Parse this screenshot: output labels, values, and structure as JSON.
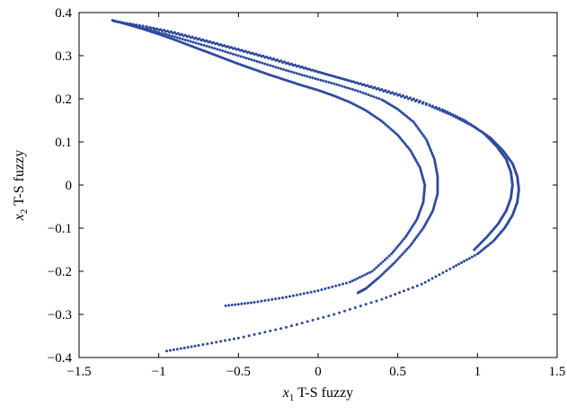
{
  "chart_data": {
    "type": "scatter",
    "title": "",
    "xlabel": {
      "var": "x",
      "sub": "1",
      "text": " T-S fuzzy"
    },
    "ylabel": {
      "var": "x",
      "sub": "2",
      "text": " T-S fuzzy"
    },
    "xlim": [
      -1.5,
      1.5
    ],
    "ylim": [
      -0.4,
      0.4
    ],
    "xticks": [
      -1.5,
      -1,
      -0.5,
      0,
      0.5,
      1,
      1.5
    ],
    "yticks": [
      -0.4,
      -0.3,
      -0.2,
      -0.1,
      0,
      0.1,
      0.2,
      0.3,
      0.4
    ],
    "xtick_labels": [
      "−1.5",
      "−1",
      "−0.5",
      "0",
      "0.5",
      "1",
      "1.5"
    ],
    "ytick_labels": [
      "−0.4",
      "−0.3",
      "−0.2",
      "−0.1",
      "0",
      "0.1",
      "0.2",
      "0.3",
      "0.4"
    ],
    "grid": false,
    "marker_color": "#2e4a9e",
    "series": [
      {
        "values": [
          [
            -1.29,
            0.382
          ],
          [
            -1.2,
            0.373
          ],
          [
            -1.1,
            0.362
          ],
          [
            -1.0,
            0.35
          ],
          [
            -0.9,
            0.337
          ],
          [
            -0.8,
            0.323
          ],
          [
            -0.7,
            0.309
          ],
          [
            -0.6,
            0.295
          ],
          [
            -0.5,
            0.281
          ],
          [
            -0.4,
            0.268
          ],
          [
            -0.3,
            0.255
          ],
          [
            -0.2,
            0.243
          ],
          [
            -0.1,
            0.231
          ],
          [
            0.0,
            0.22
          ],
          [
            0.1,
            0.207
          ],
          [
            0.2,
            0.192
          ],
          [
            0.3,
            0.173
          ],
          [
            0.4,
            0.148
          ],
          [
            0.5,
            0.116
          ],
          [
            0.58,
            0.08
          ],
          [
            0.64,
            0.04
          ],
          [
            0.67,
            0.0
          ],
          [
            0.66,
            -0.04
          ],
          [
            0.62,
            -0.08
          ],
          [
            0.55,
            -0.12
          ],
          [
            0.46,
            -0.16
          ],
          [
            0.34,
            -0.2
          ],
          [
            0.2,
            -0.225
          ],
          [
            0.0,
            -0.245
          ],
          [
            -0.2,
            -0.26
          ],
          [
            -0.4,
            -0.272
          ],
          [
            -0.58,
            -0.28
          ]
        ]
      },
      {
        "values": [
          [
            -1.25,
            0.378
          ],
          [
            -1.1,
            0.364
          ],
          [
            -0.95,
            0.349
          ],
          [
            -0.8,
            0.333
          ],
          [
            -0.65,
            0.317
          ],
          [
            -0.5,
            0.3
          ],
          [
            -0.35,
            0.283
          ],
          [
            -0.2,
            0.266
          ],
          [
            -0.05,
            0.25
          ],
          [
            0.1,
            0.235
          ],
          [
            0.25,
            0.218
          ],
          [
            0.4,
            0.198
          ],
          [
            0.5,
            0.176
          ],
          [
            0.6,
            0.146
          ],
          [
            0.68,
            0.105
          ],
          [
            0.73,
            0.06
          ],
          [
            0.75,
            0.02
          ],
          [
            0.75,
            -0.02
          ],
          [
            0.72,
            -0.06
          ],
          [
            0.66,
            -0.1
          ],
          [
            0.58,
            -0.14
          ],
          [
            0.48,
            -0.18
          ],
          [
            0.38,
            -0.215
          ],
          [
            0.3,
            -0.24
          ],
          [
            0.25,
            -0.25
          ]
        ]
      },
      {
        "values": [
          [
            -1.28,
            0.38
          ],
          [
            -1.1,
            0.369
          ],
          [
            -0.9,
            0.354
          ],
          [
            -0.7,
            0.335
          ],
          [
            -0.5,
            0.315
          ],
          [
            -0.3,
            0.295
          ],
          [
            -0.1,
            0.274
          ],
          [
            0.1,
            0.252
          ],
          [
            0.3,
            0.23
          ],
          [
            0.5,
            0.208
          ],
          [
            0.7,
            0.184
          ],
          [
            0.85,
            0.16
          ],
          [
            0.98,
            0.135
          ],
          [
            1.08,
            0.11
          ],
          [
            1.16,
            0.08
          ],
          [
            1.22,
            0.05
          ],
          [
            1.25,
            0.02
          ],
          [
            1.26,
            -0.01
          ],
          [
            1.25,
            -0.04
          ],
          [
            1.22,
            -0.07
          ],
          [
            1.17,
            -0.1
          ],
          [
            1.1,
            -0.13
          ],
          [
            1.0,
            -0.16
          ],
          [
            0.85,
            -0.19
          ],
          [
            0.65,
            -0.23
          ],
          [
            0.4,
            -0.265
          ],
          [
            0.1,
            -0.3
          ],
          [
            -0.2,
            -0.33
          ],
          [
            -0.5,
            -0.355
          ],
          [
            -0.75,
            -0.372
          ],
          [
            -0.95,
            -0.385
          ]
        ]
      },
      {
        "values": [
          [
            -1.22,
            0.376
          ],
          [
            -1.0,
            0.36
          ],
          [
            -0.8,
            0.342
          ],
          [
            -0.6,
            0.323
          ],
          [
            -0.4,
            0.303
          ],
          [
            -0.2,
            0.282
          ],
          [
            0.0,
            0.262
          ],
          [
            0.2,
            0.242
          ],
          [
            0.4,
            0.222
          ],
          [
            0.6,
            0.2
          ],
          [
            0.78,
            0.175
          ],
          [
            0.92,
            0.15
          ],
          [
            1.04,
            0.12
          ],
          [
            1.12,
            0.09
          ],
          [
            1.18,
            0.06
          ],
          [
            1.21,
            0.03
          ],
          [
            1.22,
            0.0
          ],
          [
            1.21,
            -0.03
          ],
          [
            1.18,
            -0.06
          ],
          [
            1.13,
            -0.09
          ],
          [
            1.06,
            -0.12
          ],
          [
            0.98,
            -0.15
          ]
        ]
      }
    ]
  }
}
